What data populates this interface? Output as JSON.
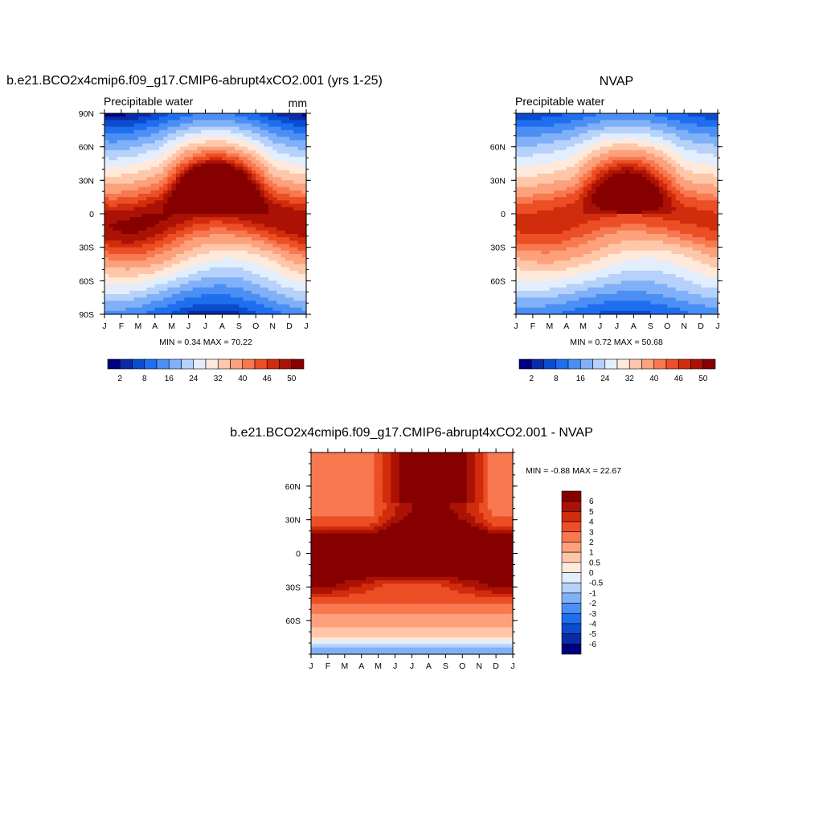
{
  "months": [
    "J",
    "F",
    "M",
    "A",
    "M",
    "J",
    "J",
    "A",
    "S",
    "O",
    "N",
    "D",
    "J"
  ],
  "chart_data": [
    {
      "type": "heatmap",
      "title": "b.e21.BCO2x4cmip6.f09_g17.CMIP6-abrupt4xCO2.001 (yrs 1-25)",
      "subtitle": "Precipitable water",
      "units": "mm",
      "x_axis": "month",
      "y_axis": "latitude",
      "ylim": [
        -90,
        90
      ],
      "y_ticks": [
        {
          "v": 90,
          "label": "90N"
        },
        {
          "v": 60,
          "label": "60N"
        },
        {
          "v": 30,
          "label": "30N"
        },
        {
          "v": 0,
          "label": "0"
        },
        {
          "v": -30,
          "label": "30S"
        },
        {
          "v": -60,
          "label": "60S"
        },
        {
          "v": -90,
          "label": "90S"
        }
      ],
      "min": 0.34,
      "max": 70.22,
      "min_max_label": "MIN =   0.34 MAX =  70.22",
      "model": {
        "eq": 50,
        "slope": 0.5,
        "npol": 0,
        "spol": 0,
        "nseas": 1.0,
        "shift_amp": 12,
        "shift_phase": 7
      },
      "colorbar": {
        "orientation": "horizontal",
        "colors": [
          "#00007f",
          "#0a2aa6",
          "#0b4ccf",
          "#1f6ef0",
          "#4b8ff5",
          "#80b0f7",
          "#b6d1fa",
          "#e2eefd",
          "#ffe9db",
          "#ffc7a9",
          "#fca17c",
          "#f87850",
          "#ec4e25",
          "#d12c0c",
          "#ab1205",
          "#860000"
        ],
        "boundaries": [
          -1,
          2,
          5,
          8,
          12,
          16,
          20,
          24,
          28,
          32,
          36,
          40,
          43,
          46,
          48,
          50,
          999
        ],
        "labels": [
          {
            "v": 2,
            "label": "2"
          },
          {
            "v": 8,
            "label": "8"
          },
          {
            "v": 16,
            "label": "16"
          },
          {
            "v": 24,
            "label": "24"
          },
          {
            "v": 32,
            "label": "32"
          },
          {
            "v": 40,
            "label": "40"
          },
          {
            "v": 46,
            "label": "46"
          },
          {
            "v": 50,
            "label": "50"
          }
        ]
      }
    },
    {
      "type": "heatmap",
      "title": "NVAP",
      "subtitle": "Precipitable water",
      "x_axis": "month",
      "y_axis": "latitude",
      "ylim": [
        -90,
        90
      ],
      "y_ticks": [
        {
          "v": 60,
          "label": "60N"
        },
        {
          "v": 30,
          "label": "30N"
        },
        {
          "v": 0,
          "label": "0"
        },
        {
          "v": -30,
          "label": "30S"
        },
        {
          "v": -60,
          "label": "60S"
        }
      ],
      "min": 0.72,
      "max": 50.68,
      "min_max_label": "MIN =   0.72 MAX =  50.68",
      "model": {
        "eq": 47,
        "slope": 0.42,
        "npol": 0,
        "spol": 0.5,
        "nseas": 0.9,
        "shift_amp": 9,
        "shift_phase": 7
      },
      "colorbar": {
        "orientation": "horizontal",
        "colors": [
          "#00007f",
          "#0a2aa6",
          "#0b4ccf",
          "#1f6ef0",
          "#4b8ff5",
          "#80b0f7",
          "#b6d1fa",
          "#e2eefd",
          "#ffe9db",
          "#ffc7a9",
          "#fca17c",
          "#f87850",
          "#ec4e25",
          "#d12c0c",
          "#ab1205",
          "#860000"
        ],
        "boundaries": [
          -1,
          2,
          5,
          8,
          12,
          16,
          20,
          24,
          28,
          32,
          36,
          40,
          43,
          46,
          48,
          50,
          999
        ],
        "labels": [
          {
            "v": 2,
            "label": "2"
          },
          {
            "v": 8,
            "label": "8"
          },
          {
            "v": 16,
            "label": "16"
          },
          {
            "v": 24,
            "label": "24"
          },
          {
            "v": 32,
            "label": "32"
          },
          {
            "v": 40,
            "label": "40"
          },
          {
            "v": 46,
            "label": "46"
          },
          {
            "v": 50,
            "label": "50"
          }
        ]
      }
    },
    {
      "type": "heatmap",
      "title": "b.e21.BCO2x4cmip6.f09_g17.CMIP6-abrupt4xCO2.001 - NVAP",
      "x_axis": "month",
      "y_axis": "latitude",
      "ylim": [
        -90,
        90
      ],
      "y_ticks": [
        {
          "v": 60,
          "label": "60N"
        },
        {
          "v": 30,
          "label": "30N"
        },
        {
          "v": 0,
          "label": "0"
        },
        {
          "v": -30,
          "label": "30S"
        },
        {
          "v": -60,
          "label": "60S"
        }
      ],
      "min": -0.88,
      "max": 22.67,
      "min_max_label": "MIN =  -0.88 MAX =  22.67",
      "model": {
        "eq": 7.5,
        "nh_base": 2.5,
        "nh_summer": 5.5,
        "sh_base": 4.0,
        "trop": 4.0
      },
      "colorbar": {
        "orientation": "vertical",
        "colors": [
          "#00007f",
          "#0a2aa6",
          "#0b4ccf",
          "#1f6ef0",
          "#4b8ff5",
          "#80b0f7",
          "#b6d1fa",
          "#e2eefd",
          "#ffe9db",
          "#ffc7a9",
          "#fca17c",
          "#f87850",
          "#ec4e25",
          "#d12c0c",
          "#ab1205",
          "#860000"
        ],
        "boundaries": [
          -99,
          -6,
          -5,
          -4,
          -3,
          -2,
          -1,
          -0.5,
          0,
          0.5,
          1,
          2,
          3,
          4,
          5,
          6,
          999
        ],
        "labels": [
          {
            "v": 6,
            "label": "6"
          },
          {
            "v": 5,
            "label": "5"
          },
          {
            "v": 4,
            "label": "4"
          },
          {
            "v": 3,
            "label": "3"
          },
          {
            "v": 2,
            "label": "2"
          },
          {
            "v": 1,
            "label": "1"
          },
          {
            "v": 0.5,
            "label": "0.5"
          },
          {
            "v": 0,
            "label": "0"
          },
          {
            "v": -0.5,
            "label": "-0.5"
          },
          {
            "v": -1,
            "label": "-1"
          },
          {
            "v": -2,
            "label": "-2"
          },
          {
            "v": -3,
            "label": "-3"
          },
          {
            "v": -4,
            "label": "-4"
          },
          {
            "v": -5,
            "label": "-5"
          },
          {
            "v": -6,
            "label": "-6"
          }
        ]
      }
    }
  ]
}
